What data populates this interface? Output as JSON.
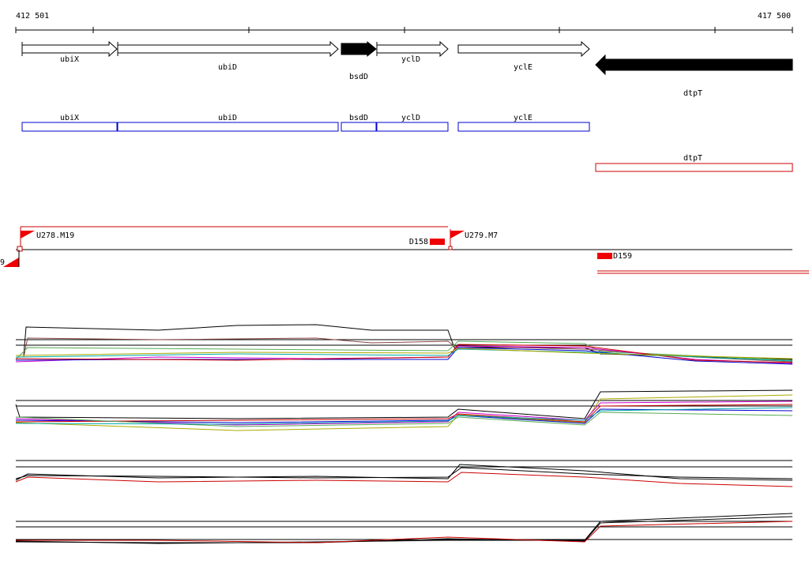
{
  "ruler": {
    "start": "412 501",
    "end": "417 500"
  },
  "genes": [
    {
      "label": "ubiX"
    },
    {
      "label": "ubiD"
    },
    {
      "label": "bsdD"
    },
    {
      "label": "yclD"
    },
    {
      "label": "yclE"
    },
    {
      "label": "dtpT"
    }
  ],
  "transcripts": [
    {
      "label": "ubiX"
    },
    {
      "label": "ubiD"
    },
    {
      "label": "bsdD"
    },
    {
      "label": "yclD"
    },
    {
      "label": "yclE"
    },
    {
      "label": "dtpT"
    }
  ],
  "features": {
    "upstream": [
      "U278.M19",
      "U279.M7"
    ],
    "downstream": [
      "D158",
      "D159"
    ],
    "edge_label": "9"
  }
}
